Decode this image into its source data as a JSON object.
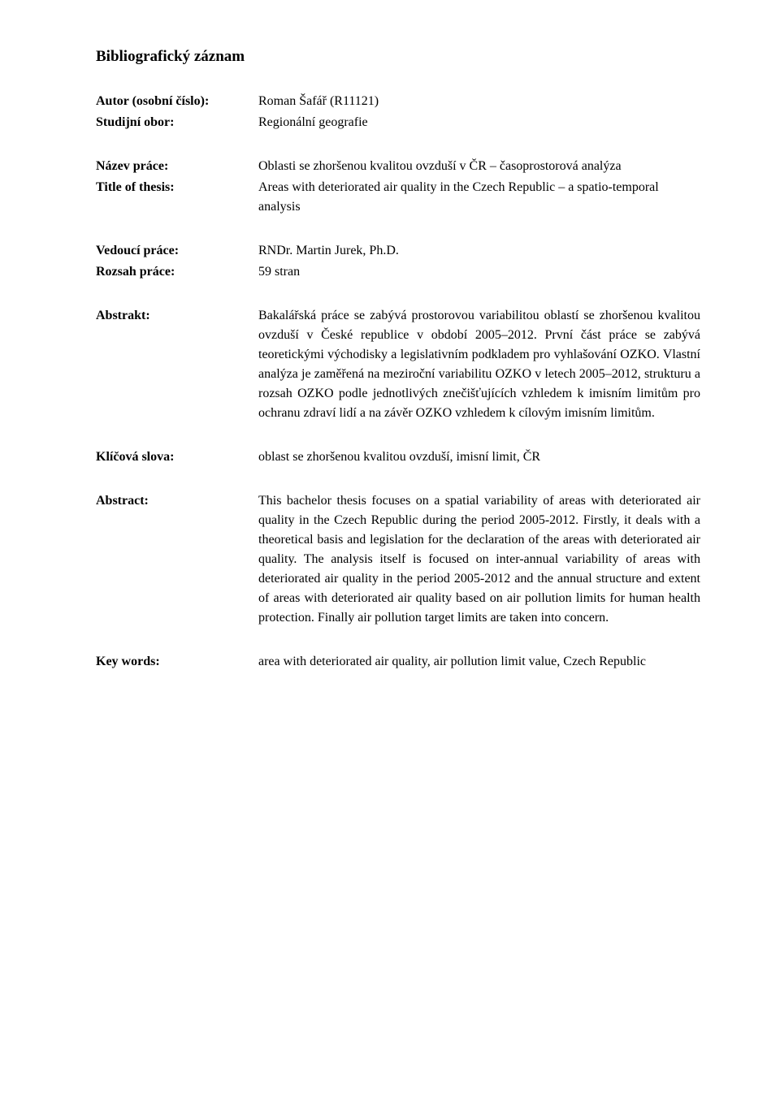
{
  "heading": "Bibliografický záznam",
  "author": {
    "label": "Autor (osobní číslo):",
    "value": "Roman Šafář (R11121)"
  },
  "study_field": {
    "label": "Studijní obor:",
    "value": "Regionální geografie"
  },
  "title_cz": {
    "label": "Název práce:",
    "value": "Oblasti se zhoršenou kvalitou ovzduší v ČR – časoprostorová analýza"
  },
  "title_en": {
    "label": "Title of thesis:",
    "value": "Areas with deteriorated air quality in the Czech Republic – a spatio-temporal analysis"
  },
  "supervisor": {
    "label": "Vedoucí práce:",
    "value": "RNDr. Martin Jurek, Ph.D."
  },
  "extent": {
    "label": "Rozsah práce:",
    "value": "59 stran"
  },
  "abstrakt": {
    "label": "Abstrakt:",
    "value": "Bakalářská práce se zabývá prostorovou variabilitou oblastí se zhoršenou kvalitou ovzduší v České republice v období 2005–2012. První část práce se zabývá teoretickými východisky a legislativním podkladem pro vyhlašování OZKO. Vlastní analýza je zaměřená na meziroční variabilitu OZKO v letech 2005–2012, strukturu a rozsah OZKO podle jednotlivých znečišťujících vzhledem k imisním limitům pro ochranu zdraví lidí a na závěr OZKO vzhledem k cílovým imisním limitům."
  },
  "keywords_cz": {
    "label": "Klíčová slova:",
    "value": "oblast se zhoršenou kvalitou ovzduší, imisní limit, ČR"
  },
  "abstract_en": {
    "label": "Abstract:",
    "value": "This bachelor thesis focuses on a spatial variability of areas with deteriorated air quality in the Czech Republic during the period 2005-2012. Firstly, it deals with a theoretical basis and legislation for the declaration of the areas with deteriorated air quality. The analysis itself is focused on inter-annual variability of areas with deteriorated air quality in the period 2005-2012 and the annual structure and extent of areas with deteriorated air quality based on air pollution limits for human health protection. Finally air pollution target limits are taken into concern."
  },
  "keywords_en": {
    "label": "Key words:",
    "value": "area with deteriorated air quality, air pollution limit value, Czech Republic"
  }
}
